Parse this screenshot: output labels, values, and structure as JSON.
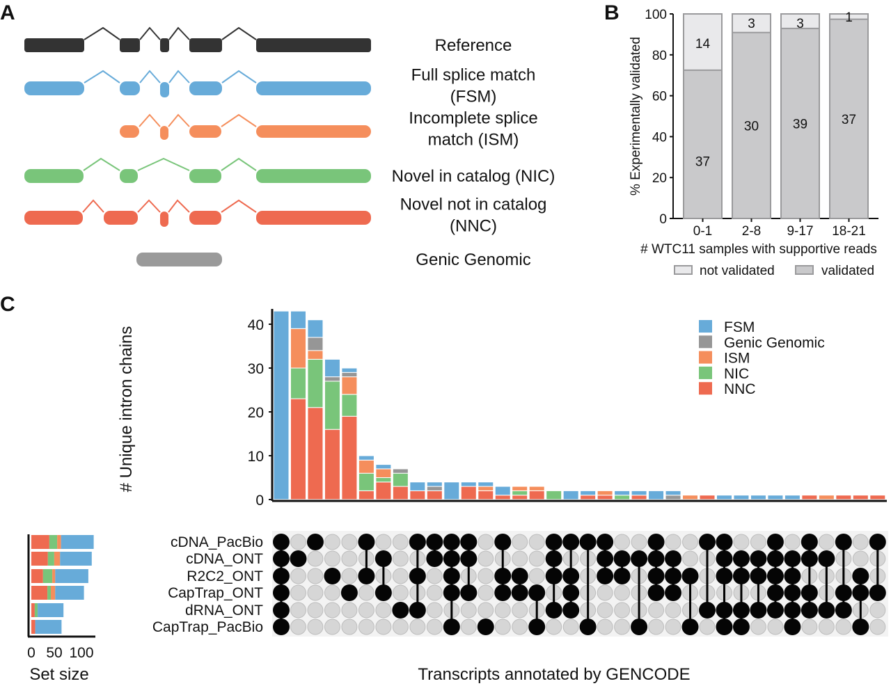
{
  "panels": {
    "a": "A",
    "b": "B",
    "c": "C"
  },
  "diagram": {
    "rows": [
      {
        "category": "reference",
        "lines": [
          "Reference"
        ]
      },
      {
        "category": "fsm",
        "lines": [
          "Full splice match",
          "(FSM)"
        ]
      },
      {
        "category": "ism",
        "lines": [
          "Incomplete splice",
          "match (ISM)"
        ]
      },
      {
        "category": "nic",
        "lines": [
          "Novel in catalog (NIC)"
        ]
      },
      {
        "category": "nnc",
        "lines": [
          "Novel not in catalog",
          "(NNC)"
        ]
      },
      {
        "category": "genic",
        "lines": [
          "Genic Genomic"
        ]
      }
    ],
    "colors": {
      "reference": "#333333",
      "fsm": "#67abd9",
      "ism": "#f58e5c",
      "nic": "#79c57a",
      "nnc": "#ee6a50",
      "genic": "#9a9a9a"
    }
  },
  "chart_data": [
    {
      "type": "bar",
      "stacked": true,
      "ylabel": "% Experimentally validated",
      "xlabel": "# WTC11 samples with supportive reads",
      "ylim": [
        0,
        100
      ],
      "yticks": [
        "0",
        "20",
        "40",
        "60",
        "80",
        "100"
      ],
      "categories": [
        "0-1",
        "2-8",
        "9-17",
        "18-21"
      ],
      "series": [
        {
          "name": "validated",
          "color": "#c9c9cb",
          "percent": [
            72.5,
            90.9,
            92.9,
            97.4
          ],
          "counts": [
            "37",
            "30",
            "39",
            "37"
          ]
        },
        {
          "name": "not validated",
          "color": "#e9e9eb",
          "percent": [
            27.5,
            9.1,
            7.1,
            2.6
          ],
          "counts": [
            "14",
            "3",
            "3",
            "1"
          ]
        }
      ],
      "legend": [
        "not validated",
        "validated"
      ],
      "legend_position": "bottom"
    },
    {
      "type": "upset",
      "ylabel": "# Unique intron chains",
      "xlabel": "Transcripts annotated by GENCODE",
      "ylim": [
        0,
        43
      ],
      "yticks": [
        "0",
        "10",
        "20",
        "30",
        "40"
      ],
      "categories_order": [
        "NNC",
        "NIC",
        "ISM",
        "Genic Genomic",
        "FSM"
      ],
      "legend": [
        {
          "name": "FSM",
          "color": "#67abd9"
        },
        {
          "name": "Genic Genomic",
          "color": "#969696"
        },
        {
          "name": "ISM",
          "color": "#f58e5c"
        },
        {
          "name": "NIC",
          "color": "#79c57a"
        },
        {
          "name": "NNC",
          "color": "#ee6a50"
        }
      ],
      "legend_position": "top-right",
      "sets": [
        "cDNA_PacBio",
        "cDNA_ONT",
        "R2C2_ONT",
        "CapTrap_ONT",
        "dRNA_ONT",
        "CapTrap_PacBio"
      ],
      "intersections": [
        {
          "values": [
            0,
            0,
            0,
            0,
            43
          ],
          "members": [
            0,
            1,
            2,
            3,
            4,
            5
          ]
        },
        {
          "values": [
            23,
            7,
            9,
            0,
            4
          ],
          "members": [
            1
          ]
        },
        {
          "values": [
            21,
            11,
            2,
            3,
            4
          ],
          "members": [
            0
          ]
        },
        {
          "values": [
            16,
            11,
            0,
            1,
            4
          ],
          "members": [
            2
          ]
        },
        {
          "values": [
            19,
            5,
            4,
            1,
            1
          ],
          "members": [
            3
          ]
        },
        {
          "values": [
            2,
            4,
            3,
            0,
            1
          ],
          "members": [
            0,
            2
          ]
        },
        {
          "values": [
            4,
            1,
            2,
            0,
            1
          ],
          "members": [
            1,
            3
          ]
        },
        {
          "values": [
            3,
            3,
            0,
            1,
            0
          ],
          "members": [
            4
          ]
        },
        {
          "values": [
            2,
            0,
            0,
            0,
            2
          ],
          "members": [
            0,
            2,
            4
          ]
        },
        {
          "values": [
            2,
            0,
            0,
            1,
            1
          ],
          "members": [
            0,
            1
          ]
        },
        {
          "values": [
            0,
            0,
            0,
            0,
            4
          ],
          "members": [
            0,
            1,
            2,
            3,
            5
          ]
        },
        {
          "values": [
            3,
            0,
            0,
            0,
            1
          ],
          "members": [
            0,
            1,
            3
          ]
        },
        {
          "values": [
            2,
            0,
            1,
            0,
            1
          ],
          "members": [
            5
          ]
        },
        {
          "values": [
            1,
            0,
            0,
            0,
            2
          ],
          "members": [
            0,
            2,
            3
          ]
        },
        {
          "values": [
            1,
            1,
            1,
            0,
            0
          ],
          "members": [
            2,
            3
          ]
        },
        {
          "values": [
            2,
            0,
            1,
            0,
            0
          ],
          "members": [
            3,
            5
          ]
        },
        {
          "values": [
            0,
            2,
            0,
            0,
            0
          ],
          "members": [
            0,
            1,
            2,
            4
          ]
        },
        {
          "values": [
            0,
            0,
            0,
            0,
            2
          ],
          "members": [
            0,
            2,
            3,
            4
          ]
        },
        {
          "values": [
            1,
            0,
            0,
            0,
            1
          ],
          "members": [
            0,
            5
          ]
        },
        {
          "values": [
            1,
            0,
            1,
            0,
            0
          ],
          "members": [
            0,
            1,
            2
          ]
        },
        {
          "values": [
            0,
            1,
            0,
            0,
            1
          ],
          "members": [
            1,
            2
          ]
        },
        {
          "values": [
            1,
            0,
            0,
            0,
            1
          ],
          "members": [
            1,
            5
          ]
        },
        {
          "values": [
            0,
            0,
            0,
            0,
            2
          ],
          "members": [
            0,
            1,
            2,
            3
          ]
        },
        {
          "values": [
            0,
            0,
            0,
            1,
            1
          ],
          "members": [
            1,
            2,
            3
          ]
        },
        {
          "values": [
            0,
            0,
            1,
            0,
            0
          ],
          "members": [
            2,
            5
          ]
        },
        {
          "values": [
            1,
            0,
            0,
            0,
            0
          ],
          "members": [
            0,
            4
          ]
        },
        {
          "values": [
            0,
            0,
            0,
            0,
            1
          ],
          "members": [
            0,
            1,
            2,
            4,
            5
          ]
        },
        {
          "values": [
            0,
            0,
            0,
            0,
            1
          ],
          "members": [
            1,
            2,
            4,
            5
          ]
        },
        {
          "values": [
            0,
            0,
            0,
            0,
            1
          ],
          "members": [
            1,
            2,
            4
          ]
        },
        {
          "values": [
            0,
            0,
            0,
            0,
            1
          ],
          "members": [
            0,
            1,
            2,
            3,
            4
          ]
        },
        {
          "values": [
            0,
            0,
            0,
            0,
            1
          ],
          "members": [
            1,
            2,
            3,
            4,
            5
          ]
        },
        {
          "values": [
            1,
            0,
            0,
            0,
            0
          ],
          "members": [
            0,
            1,
            3,
            4
          ]
        },
        {
          "values": [
            0,
            0,
            1,
            0,
            0
          ],
          "members": [
            1,
            4
          ]
        },
        {
          "values": [
            1,
            0,
            0,
            0,
            0
          ],
          "members": [
            0,
            3,
            4
          ]
        },
        {
          "values": [
            1,
            0,
            0,
            0,
            0
          ],
          "members": [
            2,
            3,
            5
          ]
        },
        {
          "values": [
            1,
            0,
            0,
            0,
            0
          ],
          "members": [
            0,
            3
          ]
        }
      ],
      "set_size": {
        "xlabel": "Set size",
        "xticks": [
          "0",
          "50",
          "100"
        ],
        "values": [
          [
            37,
            16,
            8,
            0,
            67
          ],
          [
            34,
            13,
            12,
            0,
            65
          ],
          [
            24,
            19,
            6,
            0,
            68
          ],
          [
            33,
            7,
            9,
            0,
            59
          ],
          [
            7,
            6,
            0,
            0,
            53
          ],
          [
            8,
            0,
            0,
            0,
            54
          ]
        ]
      }
    }
  ]
}
